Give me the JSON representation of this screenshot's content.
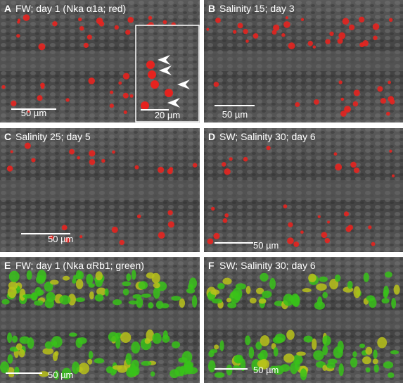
{
  "panels": [
    {
      "letter": "A",
      "caption": "FW; day 1 (Nka α1a; red)",
      "scale_bar": "50 µm"
    },
    {
      "letter": "B",
      "caption": "Salinity 15; day 3",
      "scale_bar": "50 µm"
    },
    {
      "letter": "C",
      "caption": "Salinity 25; day 5",
      "scale_bar": "50 µm"
    },
    {
      "letter": "D",
      "caption": "SW; Salinity 30; day 6",
      "scale_bar": "50 µm"
    },
    {
      "letter": "E",
      "caption": "FW; day 1 (Nka αRb1; green)",
      "scale_bar": "50 µm"
    },
    {
      "letter": "F",
      "caption": "SW; Salinity 30; day 6",
      "scale_bar": "50 µm"
    }
  ],
  "inset": {
    "scale_bar": "20 µm"
  }
}
